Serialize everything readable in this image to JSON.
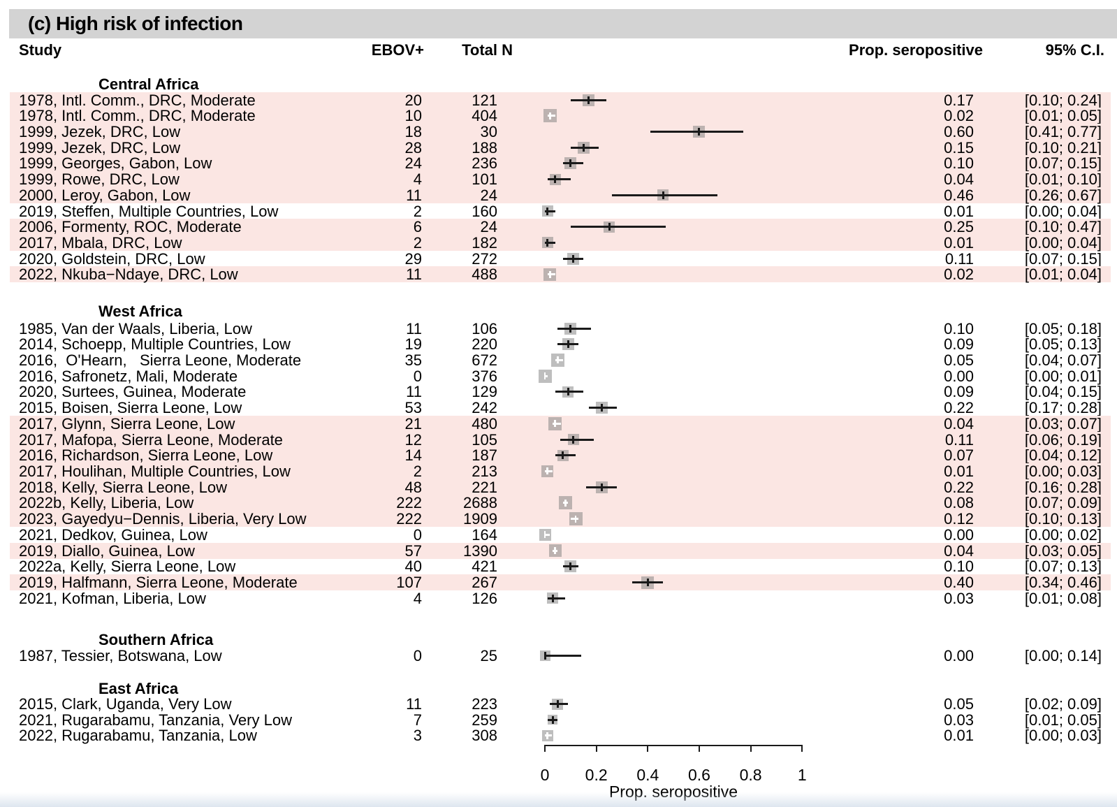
{
  "title": "(c) High risk of infection",
  "columns": {
    "study": "Study",
    "ebov": "EBOV+",
    "total": "Total N",
    "prop": "Prop. seropositive",
    "ci": "95% C.I."
  },
  "colors": {
    "highlight_band": "#fbe6e3",
    "marker_square": "#7d7d7d",
    "marker_square_alpha": 0.5,
    "ci_line": "#1a1a1a",
    "white_marker": "#ffffff",
    "title_bar": "#d3d3d3"
  },
  "chart_data": {
    "type": "forest",
    "title": "(c) High risk of infection",
    "x_axis": {
      "label": "Prop. seropositive",
      "ticks": [
        0,
        0.2,
        0.4,
        0.6,
        0.8,
        1
      ],
      "tick_labels": [
        "0",
        "0.2",
        "0.4",
        "0.6",
        "0.8",
        "1"
      ],
      "range": [
        0,
        1
      ]
    },
    "groups": [
      {
        "name": "Central Africa",
        "studies": [
          {
            "label": "1978, Intl. Comm., DRC, Moderate",
            "ebov": "20",
            "total": "121",
            "prop": "0.17",
            "ci_text": "[0.10; 0.24]",
            "estimate": 0.17,
            "ci_lower": 0.1,
            "ci_upper": 0.24,
            "highlighted": true,
            "marker_style": "black",
            "marker_size": 17
          },
          {
            "label": "1978, Intl. Comm., DRC, Moderate",
            "ebov": "10",
            "total": "404",
            "prop": "0.02",
            "ci_text": "[0.01; 0.05]",
            "estimate": 0.02,
            "ci_lower": 0.01,
            "ci_upper": 0.05,
            "highlighted": true,
            "marker_style": "white",
            "marker_size": 19
          },
          {
            "label": "1999, Jezek, DRC, Low",
            "ebov": "18",
            "total": "30",
            "prop": "0.60",
            "ci_text": "[0.41; 0.77]",
            "estimate": 0.6,
            "ci_lower": 0.41,
            "ci_upper": 0.77,
            "highlighted": true,
            "marker_style": "black",
            "marker_size": 17
          },
          {
            "label": "1999, Jezek, DRC, Low",
            "ebov": "28",
            "total": "188",
            "prop": "0.15",
            "ci_text": "[0.10; 0.21]",
            "estimate": 0.15,
            "ci_lower": 0.1,
            "ci_upper": 0.21,
            "highlighted": true,
            "marker_style": "black",
            "marker_size": 17
          },
          {
            "label": "1999, Georges, Gabon, Low",
            "ebov": "24",
            "total": "236",
            "prop": "0.10",
            "ci_text": "[0.07; 0.15]",
            "estimate": 0.1,
            "ci_lower": 0.07,
            "ci_upper": 0.15,
            "highlighted": true,
            "marker_style": "black",
            "marker_size": 17
          },
          {
            "label": "1999, Rowe, DRC, Low",
            "ebov": "4",
            "total": "101",
            "prop": "0.04",
            "ci_text": "[0.01; 0.10]",
            "estimate": 0.04,
            "ci_lower": 0.01,
            "ci_upper": 0.1,
            "highlighted": true,
            "marker_style": "black",
            "marker_size": 16
          },
          {
            "label": "2000, Leroy, Gabon, Low",
            "ebov": "11",
            "total": "24",
            "prop": "0.46",
            "ci_text": "[0.26; 0.67]",
            "estimate": 0.46,
            "ci_lower": 0.26,
            "ci_upper": 0.67,
            "highlighted": true,
            "marker_style": "black",
            "marker_size": 16
          },
          {
            "label": "2019, Steffen, Multiple Countries, Low",
            "ebov": "2",
            "total": "160",
            "prop": "0.01",
            "ci_text": "[0.00; 0.04]",
            "estimate": 0.01,
            "ci_lower": 0.0,
            "ci_upper": 0.04,
            "highlighted": false,
            "marker_style": "black",
            "marker_size": 16
          },
          {
            "label": "2006, Formenty, ROC, Moderate",
            "ebov": "6",
            "total": "24",
            "prop": "0.25",
            "ci_text": "[0.10; 0.47]",
            "estimate": 0.25,
            "ci_lower": 0.1,
            "ci_upper": 0.47,
            "highlighted": true,
            "marker_style": "black",
            "marker_size": 16
          },
          {
            "label": "2017, Mbala, DRC, Low",
            "ebov": "2",
            "total": "182",
            "prop": "0.01",
            "ci_text": "[0.00; 0.04]",
            "estimate": 0.01,
            "ci_lower": 0.0,
            "ci_upper": 0.04,
            "highlighted": true,
            "marker_style": "black",
            "marker_size": 16
          },
          {
            "label": "2020, Goldstein, DRC, Low",
            "ebov": "29",
            "total": "272",
            "prop": "0.11",
            "ci_text": "[0.07; 0.15]",
            "estimate": 0.11,
            "ci_lower": 0.07,
            "ci_upper": 0.15,
            "highlighted": false,
            "marker_style": "black",
            "marker_size": 17
          },
          {
            "label": "2022, Nkuba−Ndaye, DRC, Low",
            "ebov": "11",
            "total": "488",
            "prop": "0.02",
            "ci_text": "[0.01; 0.04]",
            "estimate": 0.02,
            "ci_lower": 0.01,
            "ci_upper": 0.04,
            "highlighted": true,
            "marker_style": "white",
            "marker_size": 18
          }
        ]
      },
      {
        "name": "West Africa",
        "studies": [
          {
            "label": "1985, Van der Waals, Liberia, Low",
            "ebov": "11",
            "total": "106",
            "prop": "0.10",
            "ci_text": "[0.05; 0.18]",
            "estimate": 0.1,
            "ci_lower": 0.05,
            "ci_upper": 0.18,
            "highlighted": false,
            "marker_style": "black",
            "marker_size": 17
          },
          {
            "label": "2014, Schoepp, Multiple Countries, Low",
            "ebov": "19",
            "total": "220",
            "prop": "0.09",
            "ci_text": "[0.05; 0.13]",
            "estimate": 0.09,
            "ci_lower": 0.05,
            "ci_upper": 0.13,
            "highlighted": false,
            "marker_style": "black",
            "marker_size": 17
          },
          {
            "label": "2016,  O'Hearn,   Sierra Leone, Moderate",
            "ebov": "35",
            "total": "672",
            "prop": "0.05",
            "ci_text": "[0.04; 0.07]",
            "estimate": 0.05,
            "ci_lower": 0.04,
            "ci_upper": 0.07,
            "highlighted": false,
            "marker_style": "white",
            "marker_size": 19
          },
          {
            "label": "2016, Safronetz, Mali, Moderate",
            "ebov": "0",
            "total": "376",
            "prop": "0.00",
            "ci_text": "[0.00; 0.01]",
            "estimate": 0.0,
            "ci_lower": 0.0,
            "ci_upper": 0.01,
            "highlighted": false,
            "marker_style": "white",
            "marker_size": 19
          },
          {
            "label": "2020, Surtees, Guinea, Moderate",
            "ebov": "11",
            "total": "129",
            "prop": "0.09",
            "ci_text": "[0.04; 0.15]",
            "estimate": 0.09,
            "ci_lower": 0.04,
            "ci_upper": 0.15,
            "highlighted": false,
            "marker_style": "black",
            "marker_size": 16
          },
          {
            "label": "2015, Boisen, Sierra Leone, Low",
            "ebov": "53",
            "total": "242",
            "prop": "0.22",
            "ci_text": "[0.17; 0.28]",
            "estimate": 0.22,
            "ci_lower": 0.17,
            "ci_upper": 0.28,
            "highlighted": false,
            "marker_style": "black",
            "marker_size": 17
          },
          {
            "label": "2017, Glynn, Sierra Leone, Low",
            "ebov": "21",
            "total": "480",
            "prop": "0.04",
            "ci_text": "[0.03; 0.07]",
            "estimate": 0.04,
            "ci_lower": 0.03,
            "ci_upper": 0.07,
            "highlighted": true,
            "marker_style": "white",
            "marker_size": 19
          },
          {
            "label": "2017, Mafopa, Sierra Leone, Moderate",
            "ebov": "12",
            "total": "105",
            "prop": "0.11",
            "ci_text": "[0.06; 0.19]",
            "estimate": 0.11,
            "ci_lower": 0.06,
            "ci_upper": 0.19,
            "highlighted": true,
            "marker_style": "black",
            "marker_size": 16
          },
          {
            "label": "2016, Richardson, Sierra Leone, Low",
            "ebov": "14",
            "total": "187",
            "prop": "0.07",
            "ci_text": "[0.04; 0.12]",
            "estimate": 0.07,
            "ci_lower": 0.04,
            "ci_upper": 0.12,
            "highlighted": true,
            "marker_style": "black",
            "marker_size": 16
          },
          {
            "label": "2017, Houlihan, Multiple Countries, Low",
            "ebov": "2",
            "total": "213",
            "prop": "0.01",
            "ci_text": "[0.00; 0.03]",
            "estimate": 0.01,
            "ci_lower": 0.0,
            "ci_upper": 0.03,
            "highlighted": true,
            "marker_style": "white",
            "marker_size": 17
          },
          {
            "label": "2018, Kelly, Sierra Leone, Low",
            "ebov": "48",
            "total": "221",
            "prop": "0.22",
            "ci_text": "[0.16; 0.28]",
            "estimate": 0.22,
            "ci_lower": 0.16,
            "ci_upper": 0.28,
            "highlighted": true,
            "marker_style": "black",
            "marker_size": 17
          },
          {
            "label": "2022b, Kelly, Liberia, Low",
            "ebov": "222",
            "total": "2688",
            "prop": "0.08",
            "ci_text": "[0.07; 0.09]",
            "estimate": 0.08,
            "ci_lower": 0.07,
            "ci_upper": 0.09,
            "highlighted": true,
            "marker_style": "white",
            "marker_size": 19
          },
          {
            "label": "2023, Gayedyu−Dennis, Liberia, Very Low",
            "ebov": "222",
            "total": "1909",
            "prop": "0.12",
            "ci_text": "[0.10; 0.13]",
            "estimate": 0.12,
            "ci_lower": 0.1,
            "ci_upper": 0.13,
            "highlighted": true,
            "marker_style": "white",
            "marker_size": 19
          },
          {
            "label": "2021, Dedkov, Guinea, Low",
            "ebov": "0",
            "total": "164",
            "prop": "0.00",
            "ci_text": "[0.00; 0.02]",
            "estimate": 0.0,
            "ci_lower": 0.0,
            "ci_upper": 0.02,
            "highlighted": false,
            "marker_style": "white",
            "marker_size": 17
          },
          {
            "label": "2019, Diallo, Guinea, Low",
            "ebov": "57",
            "total": "1390",
            "prop": "0.04",
            "ci_text": "[0.03; 0.05]",
            "estimate": 0.04,
            "ci_lower": 0.03,
            "ci_upper": 0.05,
            "highlighted": true,
            "marker_style": "white",
            "marker_size": 18
          },
          {
            "label": "2022a, Kelly, Sierra Leone, Low",
            "ebov": "40",
            "total": "421",
            "prop": "0.10",
            "ci_text": "[0.07; 0.13]",
            "estimate": 0.1,
            "ci_lower": 0.07,
            "ci_upper": 0.13,
            "highlighted": false,
            "marker_style": "black",
            "marker_size": 17
          },
          {
            "label": "2019, Halfmann, Sierra Leone, Moderate",
            "ebov": "107",
            "total": "267",
            "prop": "0.40",
            "ci_text": "[0.34; 0.46]",
            "estimate": 0.4,
            "ci_lower": 0.34,
            "ci_upper": 0.46,
            "highlighted": true,
            "marker_style": "black",
            "marker_size": 18
          },
          {
            "label": "2021, Kofman, Liberia, Low",
            "ebov": "4",
            "total": "126",
            "prop": "0.03",
            "ci_text": "[0.01; 0.08]",
            "estimate": 0.03,
            "ci_lower": 0.01,
            "ci_upper": 0.08,
            "highlighted": false,
            "marker_style": "black",
            "marker_size": 16
          }
        ]
      },
      {
        "name": "Southern Africa",
        "studies": [
          {
            "label": "1987, Tessier, Botswana, Low",
            "ebov": "0",
            "total": "25",
            "prop": "0.00",
            "ci_text": "[0.00; 0.14]",
            "estimate": 0.0,
            "ci_lower": 0.0,
            "ci_upper": 0.14,
            "highlighted": false,
            "marker_style": "black",
            "marker_size": 15
          }
        ]
      },
      {
        "name": "East Africa",
        "studies": [
          {
            "label": "2015, Clark, Uganda, Very Low",
            "ebov": "11",
            "total": "223",
            "prop": "0.05",
            "ci_text": "[0.02; 0.09]",
            "estimate": 0.05,
            "ci_lower": 0.02,
            "ci_upper": 0.09,
            "highlighted": false,
            "marker_style": "black",
            "marker_size": 16
          },
          {
            "label": "2021, Rugarabamu, Tanzania, Very Low",
            "ebov": "7",
            "total": "259",
            "prop": "0.03",
            "ci_text": "[0.01; 0.05]",
            "estimate": 0.03,
            "ci_lower": 0.01,
            "ci_upper": 0.05,
            "highlighted": false,
            "marker_style": "black",
            "marker_size": 14
          },
          {
            "label": "2022, Rugarabamu, Tanzania, Low",
            "ebov": "3",
            "total": "308",
            "prop": "0.01",
            "ci_text": "[0.00; 0.03]",
            "estimate": 0.01,
            "ci_lower": 0.0,
            "ci_upper": 0.03,
            "highlighted": false,
            "marker_style": "white",
            "marker_size": 16
          }
        ]
      }
    ]
  }
}
